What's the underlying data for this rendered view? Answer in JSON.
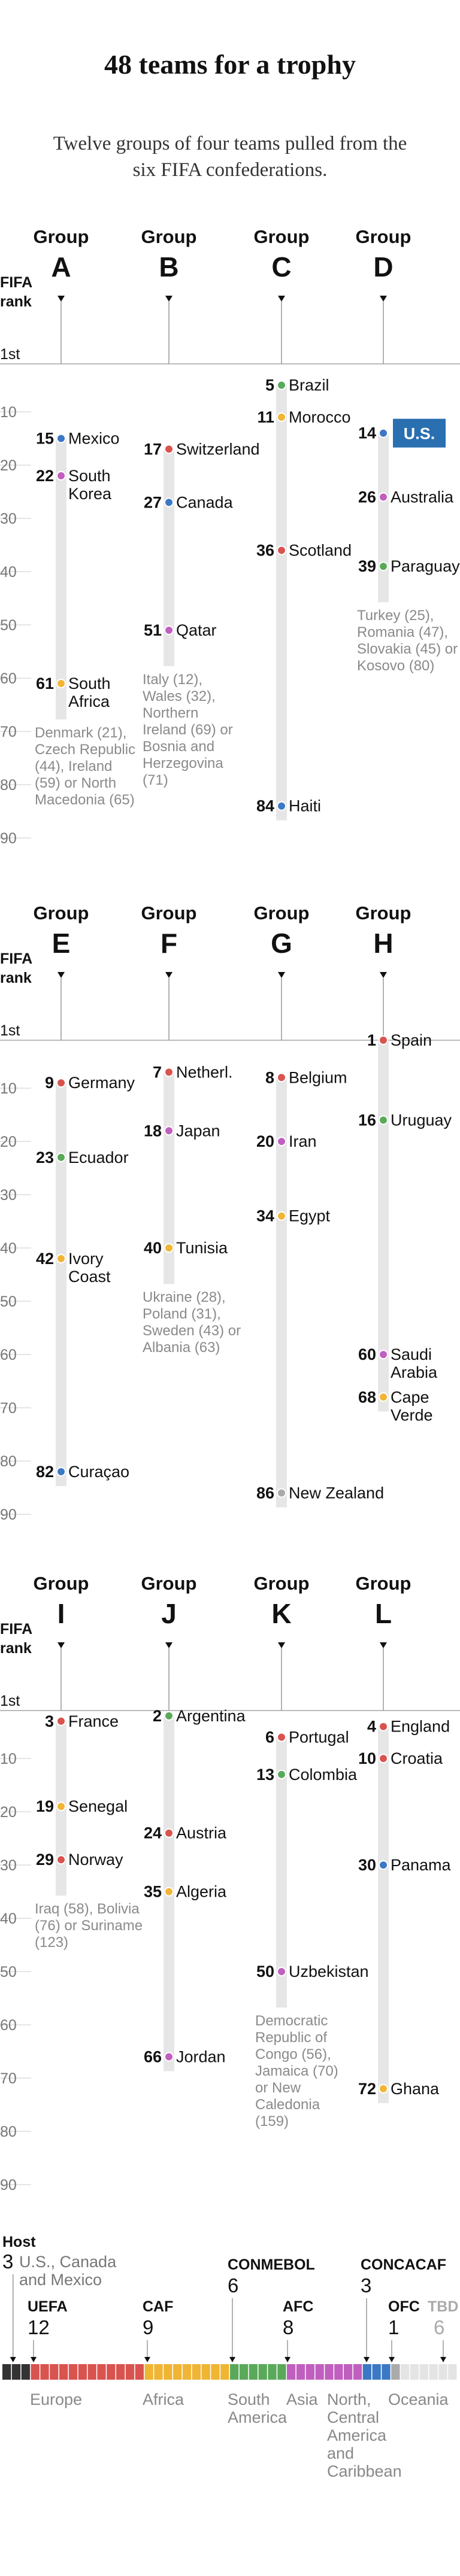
{
  "title": "48 teams for a trophy",
  "subtitle": "Twelve groups of four teams pulled from the six FIFA confederations.",
  "axis": {
    "label": "FIFA rank",
    "first": "1st",
    "ticks": [
      "10",
      "20",
      "30",
      "40",
      "50",
      "60",
      "70",
      "80",
      "90"
    ]
  },
  "group_word": "Group",
  "colors": {
    "UEFA": "#d9534f",
    "CAF": "#f0b534",
    "CONMEBOL": "#5aa95a",
    "AFC": "#c05fbf",
    "CONCACAF": "#3d78c4",
    "OFC": "#aaaaaa",
    "TBD": "#e4e4e4",
    "Host": "#333333"
  },
  "chart_data": {
    "type": "scatter",
    "title": "48 teams for a trophy",
    "ylabel": "FIFA rank",
    "ylim": [
      1,
      90
    ],
    "rows": [
      {
        "groups": [
          {
            "group": "A",
            "teams": [
              {
                "rank": 15,
                "name": [
                  "Mexico"
                ],
                "conf": "CONCACAF"
              },
              {
                "rank": 22,
                "name": [
                  "South",
                  "Korea"
                ],
                "conf": "AFC"
              },
              {
                "rank": 61,
                "name": [
                  "South",
                  "Africa"
                ],
                "conf": "CAF"
              }
            ],
            "pending": [
              "Denmark (21),",
              "Czech Republic",
              "(44), Ireland",
              "(59) or North",
              "Macedonia (65)"
            ]
          },
          {
            "group": "B",
            "teams": [
              {
                "rank": 17,
                "name": [
                  "Switzerland"
                ],
                "conf": "UEFA"
              },
              {
                "rank": 27,
                "name": [
                  "Canada"
                ],
                "conf": "CONCACAF"
              },
              {
                "rank": 51,
                "name": [
                  "Qatar"
                ],
                "conf": "AFC"
              }
            ],
            "pending": [
              "Italy (12),",
              "Wales (32),",
              "Northern",
              "Ireland (69) or",
              "Bosnia and",
              "Herzegovina",
              "(71)"
            ]
          },
          {
            "group": "C",
            "teams": [
              {
                "rank": 5,
                "name": [
                  "Brazil"
                ],
                "conf": "CONMEBOL"
              },
              {
                "rank": 11,
                "name": [
                  "Morocco"
                ],
                "conf": "CAF"
              },
              {
                "rank": 36,
                "name": [
                  "Scotland"
                ],
                "conf": "UEFA"
              },
              {
                "rank": 84,
                "name": [
                  "Haiti"
                ],
                "conf": "CONCACAF"
              }
            ],
            "pending": []
          },
          {
            "group": "D",
            "teams": [
              {
                "rank": 14,
                "name": [
                  "U.S."
                ],
                "conf": "CONCACAF",
                "highlight": true
              },
              {
                "rank": 26,
                "name": [
                  "Australia"
                ],
                "conf": "AFC"
              },
              {
                "rank": 39,
                "name": [
                  "Paraguay"
                ],
                "conf": "CONMEBOL"
              }
            ],
            "pending": [
              "Turkey (25),",
              "Romania (47),",
              "Slovakia (45) or",
              "Kosovo (80)"
            ]
          }
        ]
      },
      {
        "groups": [
          {
            "group": "E",
            "teams": [
              {
                "rank": 9,
                "name": [
                  "Germany"
                ],
                "conf": "UEFA"
              },
              {
                "rank": 23,
                "name": [
                  "Ecuador"
                ],
                "conf": "CONMEBOL"
              },
              {
                "rank": 42,
                "name": [
                  "Ivory",
                  "Coast"
                ],
                "conf": "CAF"
              },
              {
                "rank": 82,
                "name": [
                  "Curaçao"
                ],
                "conf": "CONCACAF"
              }
            ],
            "pending": []
          },
          {
            "group": "F",
            "teams": [
              {
                "rank": 7,
                "name": [
                  "Netherl."
                ],
                "conf": "UEFA"
              },
              {
                "rank": 18,
                "name": [
                  "Japan"
                ],
                "conf": "AFC"
              },
              {
                "rank": 40,
                "name": [
                  "Tunisia"
                ],
                "conf": "CAF"
              }
            ],
            "pending": [
              "Ukraine (28),",
              "Poland (31),",
              "Sweden (43) or",
              "Albania (63)"
            ]
          },
          {
            "group": "G",
            "teams": [
              {
                "rank": 8,
                "name": [
                  "Belgium"
                ],
                "conf": "UEFA"
              },
              {
                "rank": 20,
                "name": [
                  "Iran"
                ],
                "conf": "AFC"
              },
              {
                "rank": 34,
                "name": [
                  "Egypt"
                ],
                "conf": "CAF"
              },
              {
                "rank": 86,
                "name": [
                  "New Zealand"
                ],
                "conf": "OFC"
              }
            ],
            "pending": []
          },
          {
            "group": "H",
            "teams": [
              {
                "rank": 1,
                "name": [
                  "Spain"
                ],
                "conf": "UEFA"
              },
              {
                "rank": 16,
                "name": [
                  "Uruguay"
                ],
                "conf": "CONMEBOL"
              },
              {
                "rank": 60,
                "name": [
                  "Saudi",
                  "Arabia"
                ],
                "conf": "AFC"
              },
              {
                "rank": 68,
                "name": [
                  "Cape",
                  "Verde"
                ],
                "conf": "CAF"
              }
            ],
            "pending": []
          }
        ]
      },
      {
        "groups": [
          {
            "group": "I",
            "teams": [
              {
                "rank": 3,
                "name": [
                  "France"
                ],
                "conf": "UEFA"
              },
              {
                "rank": 19,
                "name": [
                  "Senegal"
                ],
                "conf": "CAF"
              },
              {
                "rank": 29,
                "name": [
                  "Norway"
                ],
                "conf": "UEFA"
              }
            ],
            "pending": [
              "Iraq (58), Bolivia",
              "(76) or Suriname",
              "(123)"
            ]
          },
          {
            "group": "J",
            "teams": [
              {
                "rank": 2,
                "name": [
                  "Argentina"
                ],
                "conf": "CONMEBOL"
              },
              {
                "rank": 24,
                "name": [
                  "Austria"
                ],
                "conf": "UEFA"
              },
              {
                "rank": 35,
                "name": [
                  "Algeria"
                ],
                "conf": "CAF"
              },
              {
                "rank": 66,
                "name": [
                  "Jordan"
                ],
                "conf": "AFC"
              }
            ],
            "pending": []
          },
          {
            "group": "K",
            "teams": [
              {
                "rank": 6,
                "name": [
                  "Portugal"
                ],
                "conf": "UEFA"
              },
              {
                "rank": 13,
                "name": [
                  "Colombia"
                ],
                "conf": "CONMEBOL"
              },
              {
                "rank": 50,
                "name": [
                  "Uzbekistan"
                ],
                "conf": "AFC"
              }
            ],
            "pending": [
              "Democratic",
              "Republic of",
              "Congo (56),",
              "Jamaica (70)",
              "or New",
              "Caledonia",
              "(159)"
            ]
          },
          {
            "group": "L",
            "teams": [
              {
                "rank": 4,
                "name": [
                  "England"
                ],
                "conf": "UEFA"
              },
              {
                "rank": 10,
                "name": [
                  "Croatia"
                ],
                "conf": "UEFA"
              },
              {
                "rank": 30,
                "name": [
                  "Panama"
                ],
                "conf": "CONCACAF"
              },
              {
                "rank": 72,
                "name": [
                  "Ghana"
                ],
                "conf": "CAF"
              }
            ],
            "pending": []
          }
        ]
      }
    ]
  },
  "legend": {
    "segments": [
      {
        "conf": "Host",
        "count": 3
      },
      {
        "conf": "UEFA",
        "count": 12
      },
      {
        "conf": "CAF",
        "count": 9
      },
      {
        "conf": "CONMEBOL",
        "count": 6
      },
      {
        "conf": "AFC",
        "count": 8
      },
      {
        "conf": "CONCACAF",
        "count": 3
      },
      {
        "conf": "OFC",
        "count": 1
      },
      {
        "conf": "TBD",
        "count": 6
      }
    ],
    "host": {
      "heading": "Host",
      "count": "3",
      "desc": [
        "U.S., Canada",
        "and Mexico"
      ]
    },
    "uefa": {
      "heading": "UEFA",
      "count": "12",
      "region": "Europe"
    },
    "caf": {
      "heading": "CAF",
      "count": "9",
      "region": "Africa"
    },
    "conmebol": {
      "heading": "CONMEBOL",
      "count": "6",
      "region": [
        "South",
        "America"
      ]
    },
    "afc": {
      "heading": "AFC",
      "count": "8",
      "region": "Asia"
    },
    "concacaf": {
      "heading": "CONCACAF",
      "count": "3",
      "region": [
        "North,",
        "Central",
        "America",
        "and",
        "Caribbean"
      ]
    },
    "ofc": {
      "heading": "OFC",
      "count": "1",
      "region": "Oceania"
    },
    "tbd": {
      "heading": "TBD",
      "count": "6"
    }
  }
}
